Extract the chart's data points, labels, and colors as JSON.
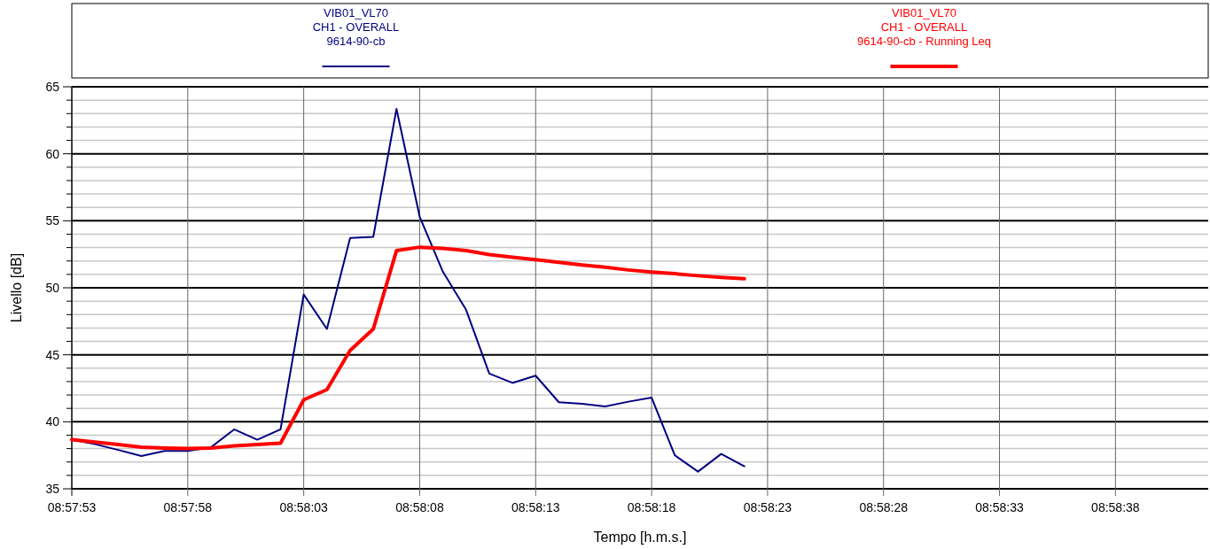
{
  "chart_data": {
    "type": "line",
    "xlabel": "Tempo [h.m.s.]",
    "ylabel": "Livello [dB]",
    "x": [
      8.9647222,
      8.965,
      8.9652778,
      8.9655556,
      8.9658333,
      8.9661111,
      8.9663889,
      8.9666667,
      8.9669444,
      8.9672222,
      8.9675,
      8.9677778,
      8.9680556,
      8.9683333,
      8.9686111,
      8.9688889,
      8.9691667,
      8.9694444,
      8.9697222,
      8.97,
      8.9702778,
      8.9705556,
      8.9708333,
      8.9711111,
      8.9713889,
      8.9716667,
      8.9719444,
      8.9722222,
      8.9725,
      8.9727778
    ],
    "series": [
      {
        "name": "VIB01_VL70\nCH1 - OVERALL\n9614-90-cb",
        "color": "#000080",
        "values": [
          38.66,
          38.33,
          37.9,
          37.45,
          37.82,
          37.82,
          38.1,
          39.43,
          38.66,
          39.43,
          49.5,
          46.93,
          53.71,
          53.8,
          63.35,
          55.3,
          51.2,
          48.36,
          43.6,
          42.9,
          43.44,
          41.46,
          41.35,
          41.15,
          41.5,
          41.8,
          37.5,
          36.28,
          37.6,
          36.68
        ]
      },
      {
        "name": "VIB01_VL70\nCH1 - OVERALL\n9614-90-cb - Running Leq",
        "color": "#ff0000",
        "values": [
          38.66,
          38.48,
          38.3,
          38.1,
          38.04,
          38.0,
          38.04,
          38.2,
          38.3,
          38.4,
          41.64,
          42.4,
          45.32,
          46.93,
          52.77,
          53.03,
          52.94,
          52.77,
          52.48,
          52.28,
          52.1,
          51.9,
          51.7,
          51.53,
          51.33,
          51.18,
          51.05,
          50.9,
          50.78,
          50.67
        ]
      }
    ],
    "xlim": [
      8.9647222,
      8.9783333
    ],
    "xticks": [
      {
        "value": 8.9647222,
        "label": "08:57:53"
      },
      {
        "value": 8.9661111,
        "label": "08:57:58"
      },
      {
        "value": 8.9675,
        "label": "08:58:03"
      },
      {
        "value": 8.9688889,
        "label": "08:58:08"
      },
      {
        "value": 8.9702778,
        "label": "08:58:13"
      },
      {
        "value": 8.9716667,
        "label": "08:58:18"
      },
      {
        "value": 8.9730556,
        "label": "08:58:23"
      },
      {
        "value": 8.9744444,
        "label": "08:58:28"
      },
      {
        "value": 8.9758333,
        "label": "08:58:33"
      },
      {
        "value": 8.9772222,
        "label": "08:58:38"
      }
    ],
    "ylim": [
      35,
      65
    ],
    "yticks": [
      35,
      {
        "value": 36,
        "label": null
      },
      {
        "value": 37,
        "label": null
      },
      {
        "value": 38,
        "label": null
      },
      {
        "value": 39,
        "label": null
      },
      40,
      {
        "value": 41,
        "label": null
      },
      {
        "value": 42,
        "label": null
      },
      {
        "value": 43,
        "label": null
      },
      {
        "value": 44,
        "label": null
      },
      45,
      {
        "value": 46,
        "label": null
      },
      {
        "value": 47,
        "label": null
      },
      {
        "value": 48,
        "label": null
      },
      {
        "value": 49,
        "label": null
      },
      50,
      {
        "value": 51,
        "label": null
      },
      {
        "value": 52,
        "label": null
      },
      {
        "value": 53,
        "label": null
      },
      {
        "value": 54,
        "label": null
      },
      55,
      {
        "value": 56,
        "label": null
      },
      {
        "value": 57,
        "label": null
      },
      {
        "value": 58,
        "label": null
      },
      {
        "value": 59,
        "label": null
      },
      60,
      {
        "value": 61,
        "label": null
      },
      {
        "value": 62,
        "label": null
      },
      {
        "value": 63,
        "label": null
      },
      {
        "value": 64,
        "label": null
      },
      65
    ],
    "grid": true,
    "legend": "top",
    "marker": "none",
    "line_style": "solid"
  }
}
